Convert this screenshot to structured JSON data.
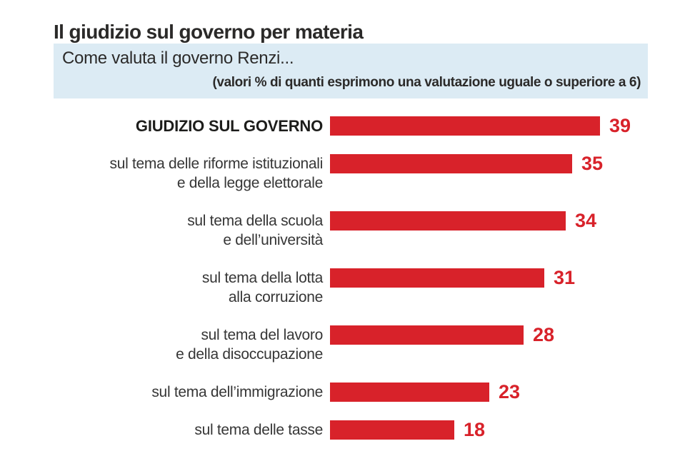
{
  "title": "Il giudizio sul governo per materia",
  "question_box": {
    "question": "Come valuta il governo Renzi...",
    "note": "(valori % di quanti esprimono una valutazione uguale o superiore a 6)"
  },
  "colors": {
    "bar_red": "#d8222a",
    "value_label_red": "#d8222a",
    "question_box_bg": "#dcebf4",
    "title_text": "#2b2a29",
    "label_text": "#363636"
  },
  "chart_data": {
    "type": "bar",
    "orientation": "horizontal",
    "title": "Il giudizio sul governo per materia",
    "subtitle": "Come valuta il governo Renzi...",
    "note": "(valori % di quanti esprimono una valutazione uguale o superiore a 6)",
    "xlim": [
      0,
      39
    ],
    "grid": false,
    "legend": false,
    "value_labels_position": "right-of-bar",
    "categories": [
      "GIUDIZIO SUL GOVERNO",
      "sul tema delle riforme istituzionali e della legge elettorale",
      "sul tema della scuola e dell’università",
      "sul tema della lotta alla corruzione",
      "sul tema del lavoro e della disoccupazione",
      "sul tema dell’immigrazione",
      "sul tema delle tasse"
    ],
    "values": [
      39,
      35,
      34,
      31,
      28,
      23,
      18
    ],
    "rows": [
      {
        "label_lines": [
          "GIUDIZIO SUL GOVERNO"
        ],
        "value": 39,
        "emphasis": true
      },
      {
        "label_lines": [
          "sul tema delle riforme istituzionali",
          "e della legge elettorale"
        ],
        "value": 35,
        "emphasis": false
      },
      {
        "label_lines": [
          "sul tema della scuola",
          "e dell’università"
        ],
        "value": 34,
        "emphasis": false
      },
      {
        "label_lines": [
          "sul tema della lotta",
          "alla corruzione"
        ],
        "value": 31,
        "emphasis": false
      },
      {
        "label_lines": [
          "sul tema del lavoro",
          "e della disoccupazione"
        ],
        "value": 28,
        "emphasis": false
      },
      {
        "label_lines": [
          "sul tema dell’immigrazione"
        ],
        "value": 23,
        "emphasis": false
      },
      {
        "label_lines": [
          "sul tema delle tasse"
        ],
        "value": 18,
        "emphasis": false
      }
    ]
  }
}
